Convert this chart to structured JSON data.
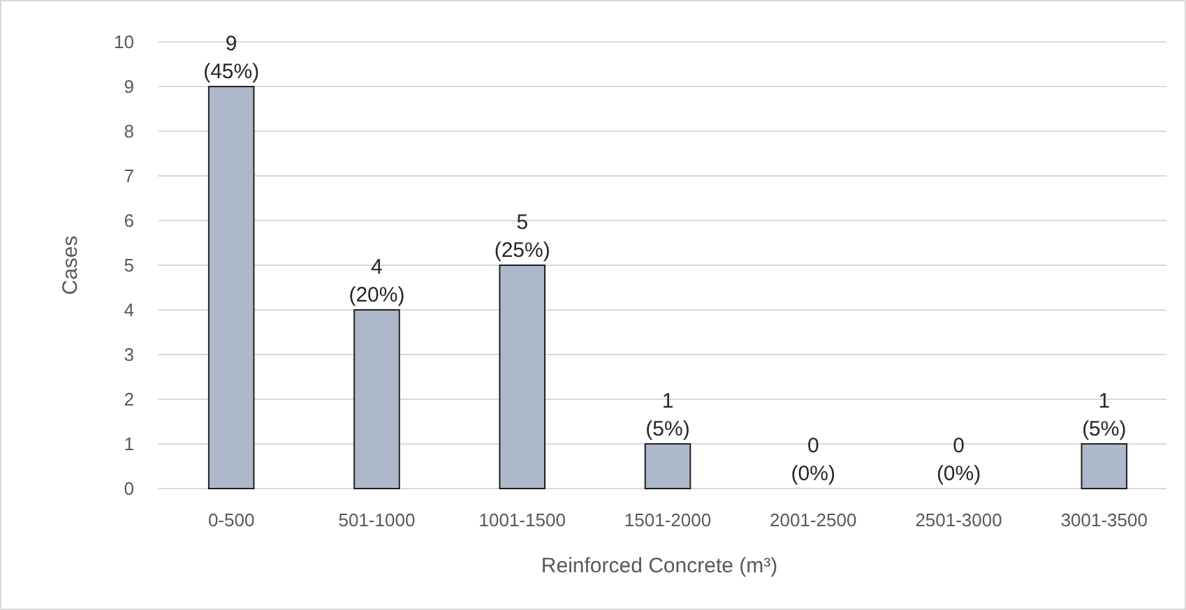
{
  "chart_data": {
    "type": "bar",
    "xlabel": "Reinforced Concrete (m³)",
    "ylabel": "Cases",
    "categories": [
      "0-500",
      "501-1000",
      "1001-1500",
      "1501-2000",
      "2001-2500",
      "2501-3000",
      "3001-3500"
    ],
    "values": [
      9,
      4,
      5,
      1,
      0,
      0,
      1
    ],
    "value_labels": [
      "9 (45%)",
      "4 (20%)",
      "5 (25%)",
      "1 (5%)",
      "0 (0%)",
      "0 (0%)",
      "1 (5%)"
    ],
    "color": "#adb9ca",
    "ylim": [
      0,
      10
    ],
    "yticks": [
      0,
      1,
      2,
      3,
      4,
      5,
      6,
      7,
      8,
      9,
      10
    ],
    "grid": "y"
  }
}
